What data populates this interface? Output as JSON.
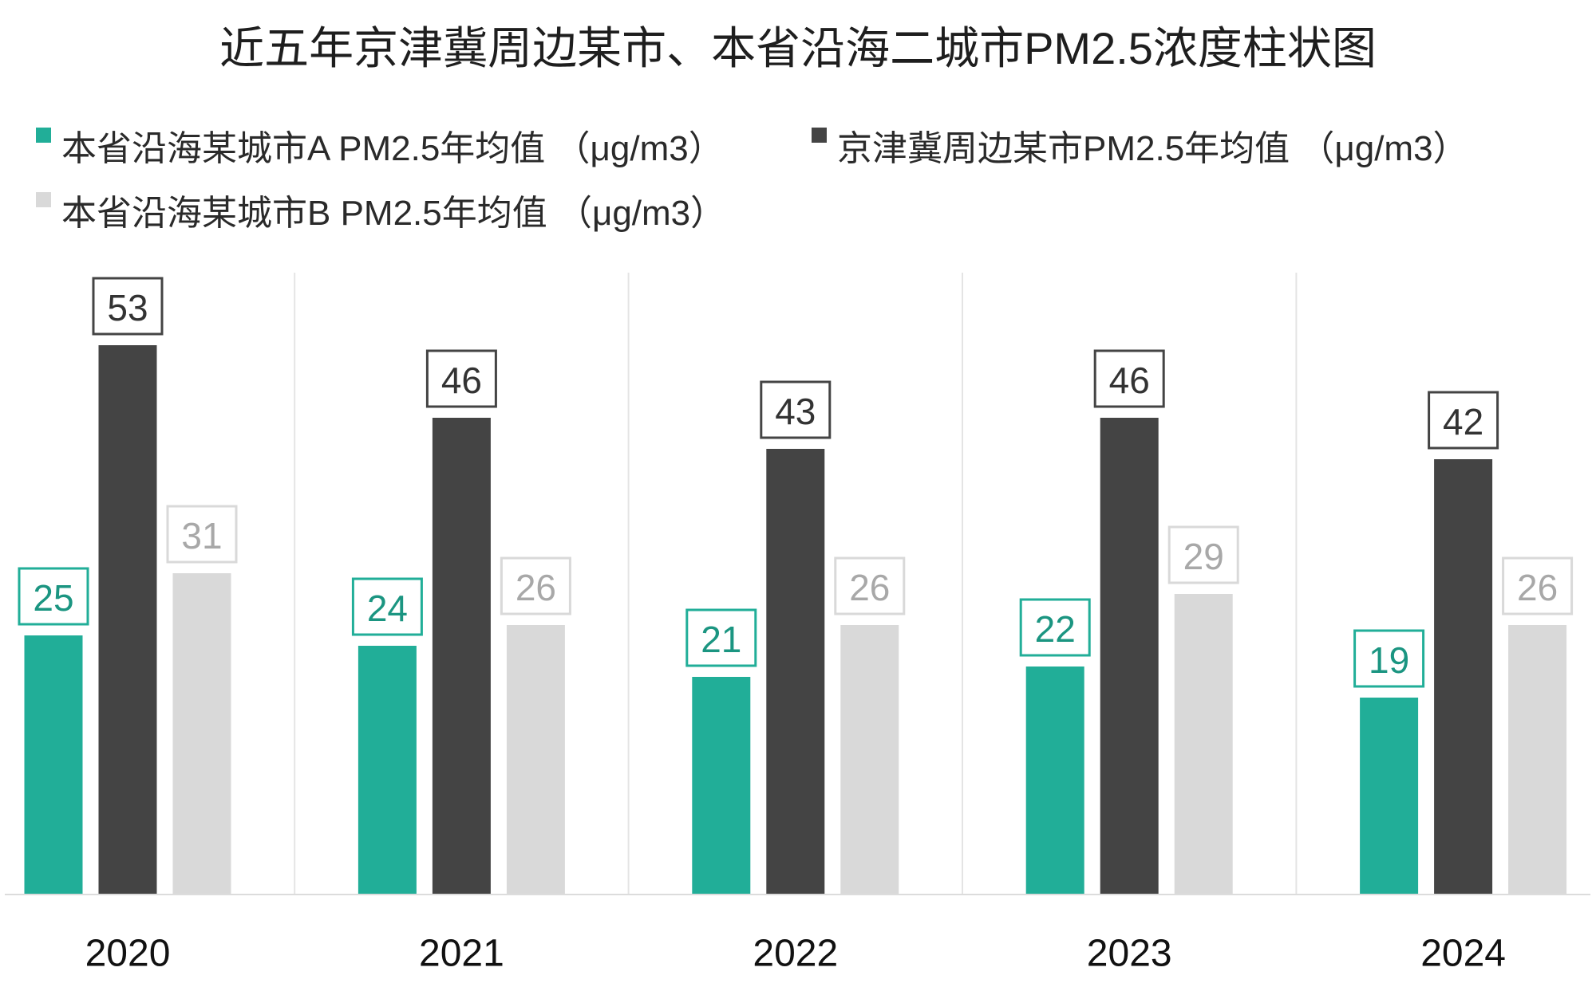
{
  "chart_data": {
    "type": "bar",
    "title": "近五年京津冀周边某市、本省沿海二城市PM2.5浓度柱状图",
    "categories": [
      "2020",
      "2021",
      "2022",
      "2023",
      "2024"
    ],
    "series": [
      {
        "name": "本省沿海某城市A PM2.5年均值 （μg/m3）",
        "color": "#21ae98",
        "label_color": "#1b9581",
        "values": [
          25,
          24,
          21,
          22,
          19
        ]
      },
      {
        "name": "京津冀周边某市PM2.5年均值 （μg/m3）",
        "color": "#444444",
        "label_color": "#333333",
        "values": [
          53,
          46,
          43,
          46,
          42
        ]
      },
      {
        "name": "本省沿海某城市B PM2.5年均值 （μg/m3）",
        "color": "#d9d9d9",
        "label_color": "#a8a8a8",
        "values": [
          31,
          26,
          26,
          29,
          26
        ]
      }
    ],
    "xlabel": "",
    "ylabel": "",
    "ylim": [
      0,
      60
    ],
    "grid": false,
    "legend_position": "top-left",
    "data_labels": true
  }
}
